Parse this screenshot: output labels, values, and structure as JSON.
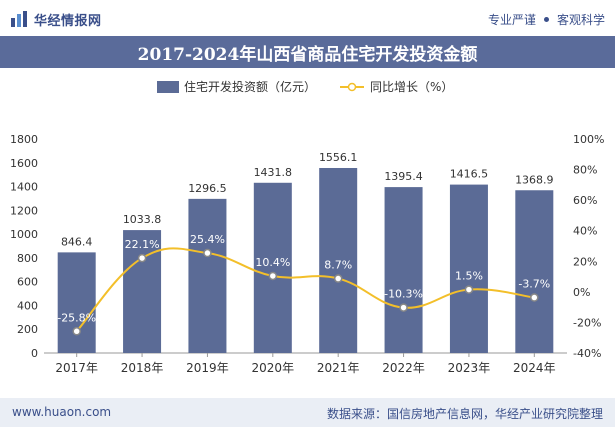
{
  "header": {
    "brand": "华经情报网",
    "tagline_left": "专业严谨",
    "tagline_right": "客观科学",
    "logo_icon": "huajing-logo-icon"
  },
  "title": "2017-2024年山西省商品住宅开发投资金额",
  "footer": {
    "website": "www.huaon.com",
    "source": "数据来源：国信房地产信息网，华经产业研究院整理"
  },
  "colors": {
    "bar": "#5b6b96",
    "line": "#f3bf2a",
    "title_bg": "#5a6b9a",
    "brand": "#3a4f8a"
  },
  "chart_data": {
    "type": "bar",
    "categories": [
      "2017年",
      "2018年",
      "2019年",
      "2020年",
      "2021年",
      "2022年",
      "2023年",
      "2024年"
    ],
    "series": [
      {
        "name": "住宅开发投资额（亿元）",
        "type": "bar",
        "axis": "left",
        "values": [
          846.4,
          1033.8,
          1296.5,
          1431.8,
          1556.1,
          1395.4,
          1416.5,
          1368.9
        ],
        "labels": [
          "846.4",
          "1033.8",
          "1296.5",
          "1431.8",
          "1556.1",
          "1395.4",
          "1416.5",
          "1368.9"
        ]
      },
      {
        "name": "同比增长（%）",
        "type": "line",
        "axis": "right",
        "values": [
          -25.8,
          22.1,
          25.4,
          10.4,
          8.7,
          -10.3,
          1.5,
          -3.7
        ],
        "labels": [
          "-25.8%",
          "22.1%",
          "25.4%",
          "10.4%",
          "8.7%",
          "-10.3%",
          "1.5%",
          "-3.7%"
        ]
      }
    ],
    "y_left": {
      "min": 0,
      "max": 1800,
      "ticks": [
        "0",
        "200",
        "400",
        "600",
        "800",
        "1000",
        "1200",
        "1400",
        "1600",
        "1800"
      ]
    },
    "y_right": {
      "min": -40,
      "max": 100,
      "ticks": [
        "-40%",
        "-20%",
        "0%",
        "20%",
        "40%",
        "60%",
        "80%",
        "100%"
      ]
    },
    "legend_position": "top-center",
    "grid": false
  }
}
